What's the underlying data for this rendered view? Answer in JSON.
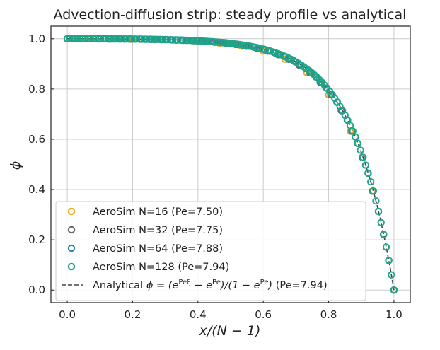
{
  "chart_data": {
    "type": "scatter",
    "title": "Advection-diffusion strip: steady profile vs analytical",
    "xlabel": "x/(N − 1)",
    "ylabel": "ϕ",
    "xlim": [
      -0.05,
      1.05
    ],
    "ylim": [
      -0.05,
      1.05
    ],
    "xticks": [
      0.0,
      0.2,
      0.4,
      0.6,
      0.8,
      1.0
    ],
    "yticks": [
      0.0,
      0.2,
      0.4,
      0.6,
      0.8,
      1.0
    ],
    "xtick_labels": [
      "0.0",
      "0.2",
      "0.4",
      "0.6",
      "0.8",
      "1.0"
    ],
    "ytick_labels": [
      "0.0",
      "0.2",
      "0.4",
      "0.6",
      "0.8",
      "1.0"
    ],
    "grid": true,
    "legend_placement": "lower-left",
    "series": [
      {
        "name": "AeroSim N=16 (Pe=7.50)",
        "kind": "markers",
        "n": 16,
        "pe": 7.5,
        "color": "#E6A817"
      },
      {
        "name": "AeroSim N=32 (Pe=7.75)",
        "kind": "markers",
        "n": 32,
        "pe": 7.75,
        "color": "#666666"
      },
      {
        "name": "AeroSim N=64 (Pe=7.88)",
        "kind": "markers",
        "n": 64,
        "pe": 7.88,
        "color": "#2A7FA8"
      },
      {
        "name": "AeroSim N=128 (Pe=7.94)",
        "kind": "markers",
        "n": 128,
        "pe": 7.94,
        "color": "#1FA587"
      },
      {
        "name": "Analytical",
        "kind": "line",
        "pe": 7.94,
        "color": "#444444"
      }
    ],
    "legend": [
      {
        "label": "AeroSim N=16 (Pe=7.50)"
      },
      {
        "label": "AeroSim N=32 (Pe=7.75)"
      },
      {
        "label": "AeroSim N=64 (Pe=7.88)"
      },
      {
        "label": "AeroSim N=128 (Pe=7.94)"
      },
      {
        "label_prefix": "Analytical ",
        "label_formula": "ϕ = (e^{Peξ} − e^{Pe})/(1 − e^{Pe})",
        "label_suffix": " (Pe=7.94)"
      }
    ]
  }
}
